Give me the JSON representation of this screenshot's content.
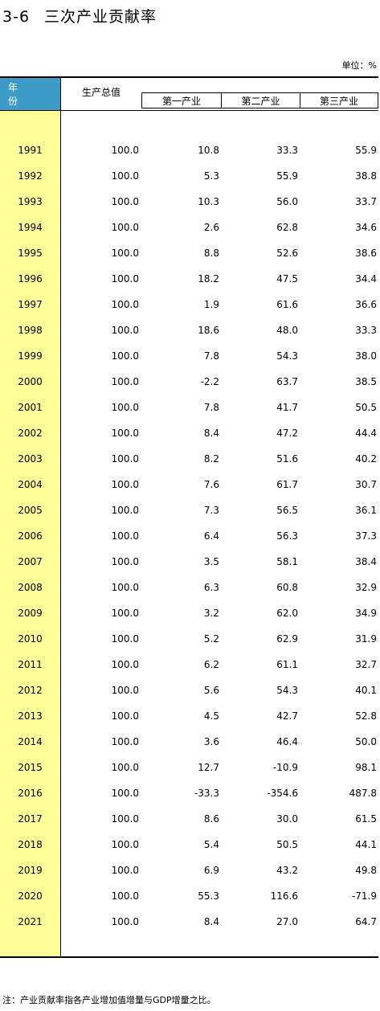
{
  "title": {
    "number": "3-6",
    "text": "三次产业贡献率"
  },
  "unit_label": "单位：%",
  "headers": {
    "year": "年 份",
    "gdp": "生产总值",
    "primary": "第一产业",
    "secondary": "第二产业",
    "tertiary": "第三产业"
  },
  "rows": [
    {
      "year": "1991",
      "gdp": "100.0",
      "p1": "10.8",
      "p2": "33.3",
      "p3": "55.9"
    },
    {
      "year": "1992",
      "gdp": "100.0",
      "p1": "5.3",
      "p2": "55.9",
      "p3": "38.8"
    },
    {
      "year": "1993",
      "gdp": "100.0",
      "p1": "10.3",
      "p2": "56.0",
      "p3": "33.7"
    },
    {
      "year": "1994",
      "gdp": "100.0",
      "p1": "2.6",
      "p2": "62.8",
      "p3": "34.6"
    },
    {
      "year": "1995",
      "gdp": "100.0",
      "p1": "8.8",
      "p2": "52.6",
      "p3": "38.6"
    },
    {
      "year": "1996",
      "gdp": "100.0",
      "p1": "18.2",
      "p2": "47.5",
      "p3": "34.4"
    },
    {
      "year": "1997",
      "gdp": "100.0",
      "p1": "1.9",
      "p2": "61.6",
      "p3": "36.6"
    },
    {
      "year": "1998",
      "gdp": "100.0",
      "p1": "18.6",
      "p2": "48.0",
      "p3": "33.3"
    },
    {
      "year": "1999",
      "gdp": "100.0",
      "p1": "7.8",
      "p2": "54.3",
      "p3": "38.0"
    },
    {
      "year": "2000",
      "gdp": "100.0",
      "p1": "-2.2",
      "p2": "63.7",
      "p3": "38.5"
    },
    {
      "year": "2001",
      "gdp": "100.0",
      "p1": "7.8",
      "p2": "41.7",
      "p3": "50.5"
    },
    {
      "year": "2002",
      "gdp": "100.0",
      "p1": "8.4",
      "p2": "47.2",
      "p3": "44.4"
    },
    {
      "year": "2003",
      "gdp": "100.0",
      "p1": "8.2",
      "p2": "51.6",
      "p3": "40.2"
    },
    {
      "year": "2004",
      "gdp": "100.0",
      "p1": "7.6",
      "p2": "61.7",
      "p3": "30.7"
    },
    {
      "year": "2005",
      "gdp": "100.0",
      "p1": "7.3",
      "p2": "56.5",
      "p3": "36.1"
    },
    {
      "year": "2006",
      "gdp": "100.0",
      "p1": "6.4",
      "p2": "56.3",
      "p3": "37.3"
    },
    {
      "year": "2007",
      "gdp": "100.0",
      "p1": "3.5",
      "p2": "58.1",
      "p3": "38.4"
    },
    {
      "year": "2008",
      "gdp": "100.0",
      "p1": "6.3",
      "p2": "60.8",
      "p3": "32.9"
    },
    {
      "year": "2009",
      "gdp": "100.0",
      "p1": "3.2",
      "p2": "62.0",
      "p3": "34.9"
    },
    {
      "year": "2010",
      "gdp": "100.0",
      "p1": "5.2",
      "p2": "62.9",
      "p3": "31.9"
    },
    {
      "year": "2011",
      "gdp": "100.0",
      "p1": "6.2",
      "p2": "61.1",
      "p3": "32.7"
    },
    {
      "year": "2012",
      "gdp": "100.0",
      "p1": "5.6",
      "p2": "54.3",
      "p3": "40.1"
    },
    {
      "year": "2013",
      "gdp": "100.0",
      "p1": "4.5",
      "p2": "42.7",
      "p3": "52.8"
    },
    {
      "year": "2014",
      "gdp": "100.0",
      "p1": "3.6",
      "p2": "46.4",
      "p3": "50.0"
    },
    {
      "year": "2015",
      "gdp": "100.0",
      "p1": "12.7",
      "p2": "-10.9",
      "p3": "98.1"
    },
    {
      "year": "2016",
      "gdp": "100.0",
      "p1": "-33.3",
      "p2": "-354.6",
      "p3": "487.8"
    },
    {
      "year": "2017",
      "gdp": "100.0",
      "p1": "8.6",
      "p2": "30.0",
      "p3": "61.5"
    },
    {
      "year": "2018",
      "gdp": "100.0",
      "p1": "5.4",
      "p2": "50.5",
      "p3": "44.1"
    },
    {
      "year": "2019",
      "gdp": "100.0",
      "p1": "6.9",
      "p2": "43.2",
      "p3": "49.8"
    },
    {
      "year": "2020",
      "gdp": "100.0",
      "p1": "55.3",
      "p2": "116.6",
      "p3": "-71.9"
    },
    {
      "year": "2021",
      "gdp": "100.0",
      "p1": "8.4",
      "p2": "27.0",
      "p3": "64.7"
    }
  ],
  "note": "注：产业贡献率指各产业增加值增量与GDP增量之比。",
  "colors": {
    "header_blue": "#3d9bc8",
    "year_column": "#ffff99"
  }
}
